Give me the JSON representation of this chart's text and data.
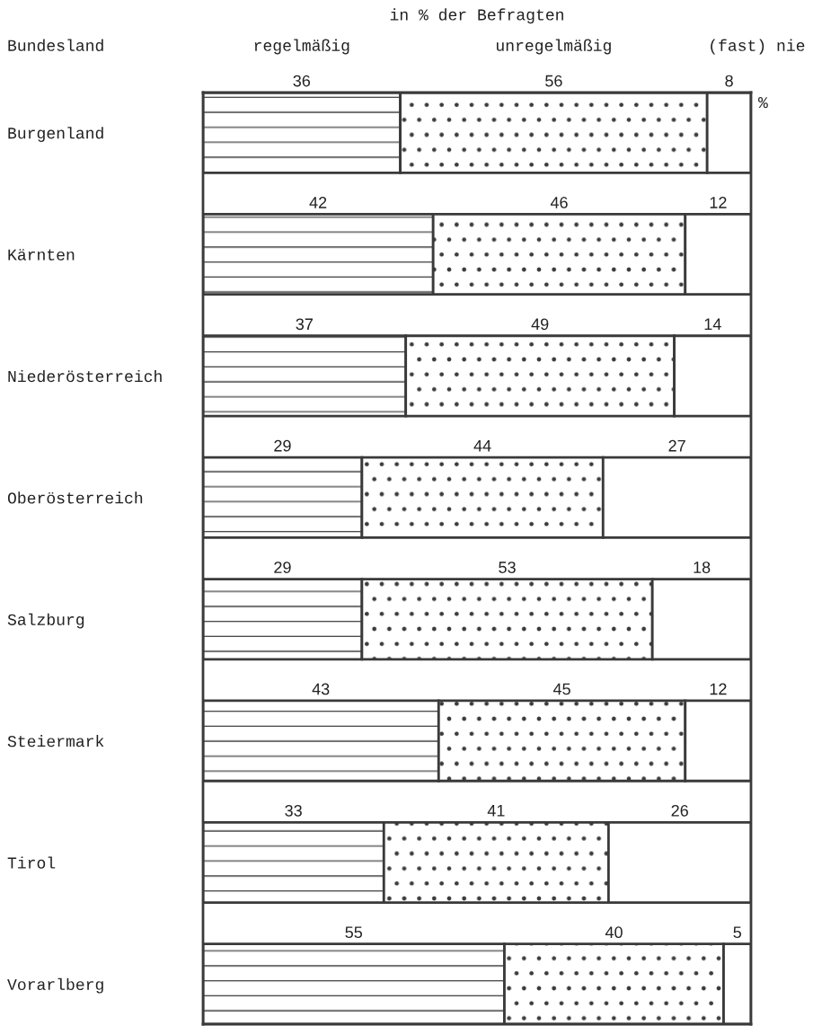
{
  "chart_data": {
    "type": "bar",
    "orientation": "horizontal",
    "stacked": true,
    "title": "in % der Befragten",
    "ylabel": "Bundesland",
    "categories": [
      "Burgenland",
      "Kärnten",
      "Niederösterreich",
      "Oberösterreich",
      "Salzburg",
      "Steiermark",
      "Tirol",
      "Vorarlberg"
    ],
    "series": [
      {
        "name": "regelmäßig",
        "color": "#3a3a3a",
        "values": [
          36,
          42,
          37,
          29,
          29,
          43,
          33,
          55
        ]
      },
      {
        "name": "unregelmäßig",
        "color": "#3a3a3a",
        "values": [
          56,
          46,
          49,
          44,
          53,
          45,
          41,
          40
        ]
      },
      {
        "name": "(fast) nie",
        "color": "#ffffff",
        "values": [
          8,
          12,
          14,
          27,
          18,
          12,
          26,
          5
        ]
      }
    ],
    "data_labels": true,
    "tick_labels": "y",
    "grid": false,
    "legend": false,
    "annotations": [
      "%"
    ]
  }
}
